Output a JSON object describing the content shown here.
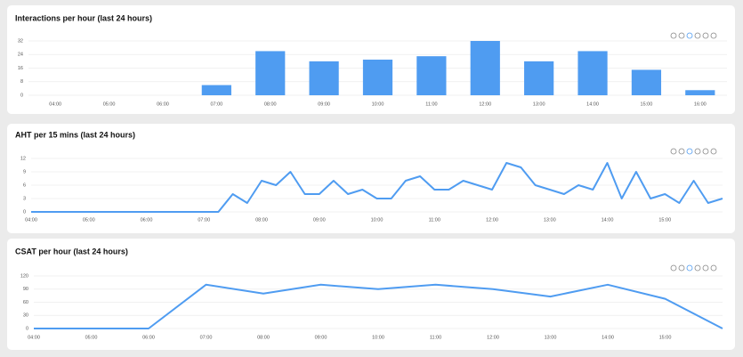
{
  "chart_data": [
    {
      "type": "bar",
      "title": "Interactions per hour (last 24 hours)",
      "categories": [
        "04:00",
        "05:00",
        "06:00",
        "07:00",
        "08:00",
        "09:00",
        "10:00",
        "11:00",
        "12:00",
        "13:00",
        "14:00",
        "15:00",
        "16:00"
      ],
      "values": [
        0,
        0,
        0,
        6,
        26,
        20,
        21,
        23,
        32,
        20,
        26,
        15,
        3
      ],
      "color": "#4f9cf1",
      "ylim": [
        0,
        32
      ],
      "yticks": [
        0,
        8,
        16,
        24,
        32
      ],
      "grid": true
    },
    {
      "type": "line",
      "title": "AHT per 15 mins (last 24 hours)",
      "categories": [
        "04:00",
        null,
        null,
        null,
        "05:00",
        null,
        null,
        null,
        "06:00",
        null,
        null,
        null,
        "07:00",
        null,
        null,
        null,
        "08:00",
        null,
        null,
        null,
        "09:00",
        null,
        null,
        null,
        "10:00",
        null,
        null,
        null,
        "11:00",
        null,
        null,
        null,
        "12:00",
        null,
        null,
        null,
        "13:00",
        null,
        null,
        null,
        "14:00",
        null,
        null,
        null,
        "15:00",
        null,
        null,
        null,
        null
      ],
      "values": [
        0,
        0,
        0,
        0,
        0,
        0,
        0,
        0,
        0,
        0,
        0,
        0,
        0,
        0,
        4,
        2,
        7,
        6,
        9,
        4,
        4,
        7,
        4,
        5,
        3,
        3,
        7,
        8,
        5,
        5,
        7,
        6,
        5,
        11,
        10,
        6,
        5,
        4,
        6,
        5,
        11,
        3,
        9,
        3,
        4,
        2,
        7,
        2,
        3
      ],
      "color": "#4f9cf1",
      "ylim": [
        0,
        12
      ],
      "yticks": [
        0,
        3,
        6,
        9,
        12
      ],
      "grid": true
    },
    {
      "type": "line",
      "title": "CSAT per hour (last 24 hours)",
      "categories": [
        "04:00",
        "05:00",
        "06:00",
        "07:00",
        "08:00",
        "09:00",
        "10:00",
        "11:00",
        "12:00",
        "13:00",
        "14:00",
        "15:00",
        null
      ],
      "values": [
        0,
        0,
        0,
        100,
        80,
        100,
        90,
        100,
        90,
        73,
        100,
        68,
        0
      ],
      "color": "#4f9cf1",
      "ylim": [
        0,
        120
      ],
      "yticks": [
        0,
        30,
        60,
        90,
        120
      ],
      "grid": true
    }
  ]
}
